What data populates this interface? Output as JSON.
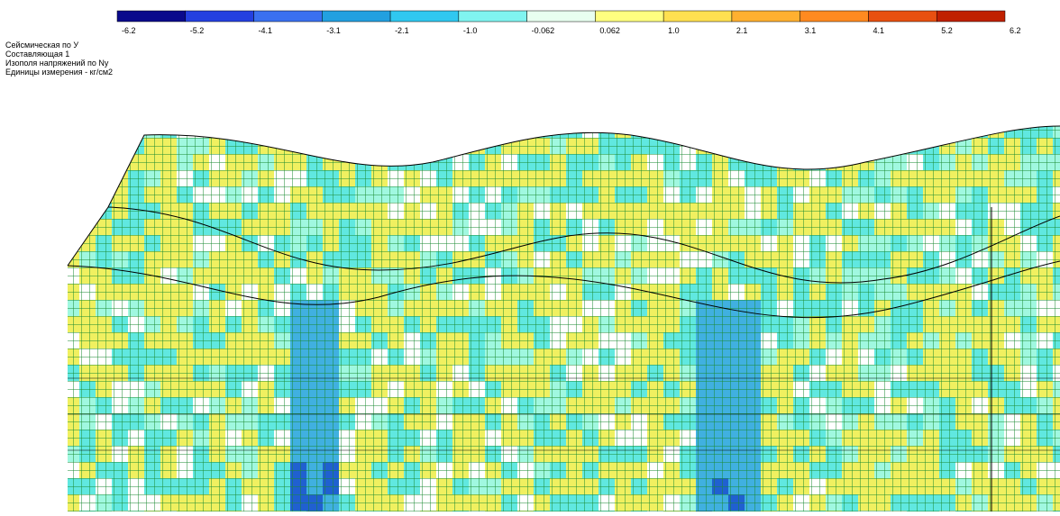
{
  "legend": {
    "labels": [
      "-6.2",
      "-5.2",
      "-4.1",
      "-3.1",
      "-2.1",
      "-1.0",
      "-0.062",
      "0.062",
      "1.0",
      "2.1",
      "3.1",
      "4.1",
      "5.2",
      "6.2"
    ],
    "colors": [
      "#0a0a8c",
      "#2440e0",
      "#3a70f0",
      "#22a0e0",
      "#30c8f0",
      "#80f4f0",
      "#e8fff0",
      "#ffff80",
      "#ffe050",
      "#ffb030",
      "#ff8a20",
      "#e85010",
      "#c02000",
      "#800000"
    ]
  },
  "info": {
    "lines": [
      "Сейсмическая по У",
      "Составляющая  1",
      "Изополя напряжений по Ny",
      "Единицы измерения - кг/см2"
    ]
  }
}
